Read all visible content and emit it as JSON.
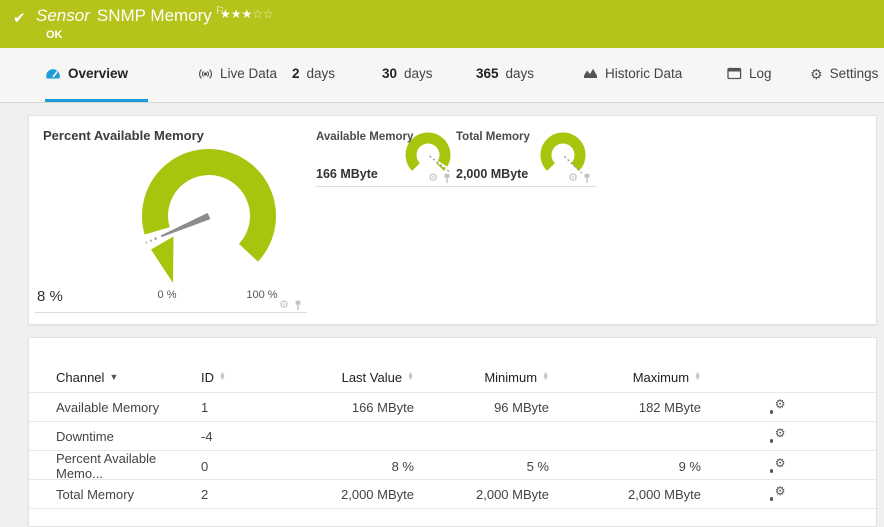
{
  "header": {
    "check": "✔",
    "type_label": "Sensor",
    "title": "SNMP Memory",
    "flag": "⚐",
    "stars_filled": "★★★",
    "stars_empty": "☆☆",
    "status": "OK"
  },
  "tabs": [
    {
      "label": "Overview",
      "icon": "gauge-icon",
      "active": true
    },
    {
      "label": "Live Data",
      "icon": "broadcast-icon",
      "active": false
    },
    {
      "num": "2",
      "label": "days",
      "active": false
    },
    {
      "num": "30",
      "label": "days",
      "active": false
    },
    {
      "num": "365",
      "label": "days",
      "active": false
    },
    {
      "label": "Historic Data",
      "icon": "area-chart-icon",
      "active": false
    },
    {
      "label": "Log",
      "icon": "window-icon",
      "active": false
    },
    {
      "label": "Settings",
      "icon": "gear-icon",
      "active": false
    }
  ],
  "gauges": {
    "primary": {
      "title": "Percent Available Memory",
      "value": "8 %",
      "scale_min": "0 %",
      "scale_max": "100 %",
      "percent": 8,
      "needle_deg": 157
    },
    "secondary": [
      {
        "title": "Available Memory",
        "value": "166 MByte",
        "needle_deg": 38
      },
      {
        "title": "Total Memory",
        "value": "2,000 MByte",
        "needle_deg": 44
      }
    ]
  },
  "table": {
    "headers": {
      "channel": "Channel",
      "id": "ID",
      "last": "Last Value",
      "min": "Minimum",
      "max": "Maximum"
    },
    "rows": [
      {
        "channel": "Available Memory",
        "id": "1",
        "last": "166 MByte",
        "min": "96 MByte",
        "max": "182 MByte"
      },
      {
        "channel": "Downtime",
        "id": "-4",
        "last": "",
        "min": "",
        "max": ""
      },
      {
        "channel": "Percent Available Memo...",
        "id": "0",
        "last": "8 %",
        "min": "5 %",
        "max": "9 %"
      },
      {
        "channel": "Total Memory",
        "id": "2",
        "last": "2,000 MByte",
        "min": "2,000 MByte",
        "max": "2,000 MByte"
      }
    ]
  },
  "colors": {
    "header_green": "#b5c31a",
    "gauge_green": "#a9c40d",
    "accent_blue": "#1e9cd7"
  }
}
